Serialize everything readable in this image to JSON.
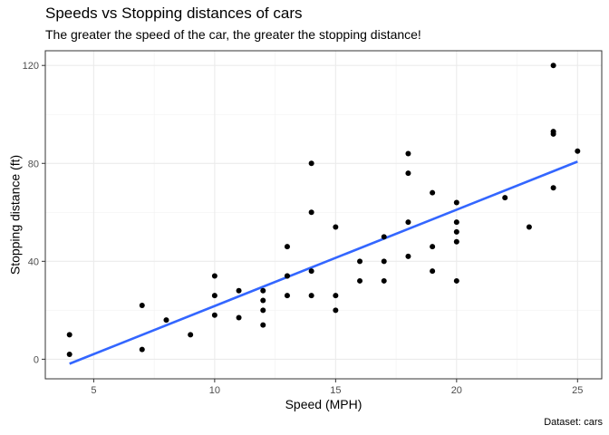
{
  "chart_data": {
    "type": "scatter",
    "title": "Speeds vs Stopping distances of cars",
    "subtitle": "The greater the speed of the car, the greater the stopping distance!",
    "caption": "Dataset: cars",
    "xlabel": "Speed (MPH)",
    "ylabel": "Stopping distance (ft)",
    "xlim": [
      3.0,
      26.0
    ],
    "ylim": [
      -8.0,
      126.0
    ],
    "xticks": [
      5,
      10,
      15,
      20,
      25
    ],
    "yticks": [
      0,
      40,
      80,
      120
    ],
    "xminor": [
      7.5,
      12.5,
      17.5,
      22.5
    ],
    "yminor": [
      20,
      60,
      100
    ],
    "grid": true,
    "point_color": "#000000",
    "line_color": "#3366FF",
    "points": [
      [
        4,
        2
      ],
      [
        4,
        10
      ],
      [
        7,
        4
      ],
      [
        7,
        22
      ],
      [
        8,
        16
      ],
      [
        9,
        10
      ],
      [
        10,
        18
      ],
      [
        10,
        26
      ],
      [
        10,
        34
      ],
      [
        11,
        17
      ],
      [
        11,
        28
      ],
      [
        12,
        14
      ],
      [
        12,
        20
      ],
      [
        12,
        24
      ],
      [
        12,
        28
      ],
      [
        13,
        26
      ],
      [
        13,
        34
      ],
      [
        13,
        34
      ],
      [
        13,
        46
      ],
      [
        14,
        26
      ],
      [
        14,
        36
      ],
      [
        14,
        60
      ],
      [
        14,
        80
      ],
      [
        15,
        20
      ],
      [
        15,
        26
      ],
      [
        15,
        54
      ],
      [
        16,
        32
      ],
      [
        16,
        40
      ],
      [
        17,
        32
      ],
      [
        17,
        40
      ],
      [
        17,
        50
      ],
      [
        18,
        42
      ],
      [
        18,
        56
      ],
      [
        18,
        76
      ],
      [
        18,
        84
      ],
      [
        19,
        36
      ],
      [
        19,
        46
      ],
      [
        19,
        68
      ],
      [
        20,
        32
      ],
      [
        20,
        48
      ],
      [
        20,
        52
      ],
      [
        20,
        56
      ],
      [
        20,
        64
      ],
      [
        22,
        66
      ],
      [
        23,
        54
      ],
      [
        24,
        70
      ],
      [
        24,
        92
      ],
      [
        24,
        93
      ],
      [
        24,
        120
      ],
      [
        25,
        85
      ]
    ],
    "fit": {
      "method": "lm",
      "x": [
        4,
        25
      ],
      "y": [
        -1.85,
        80.73
      ]
    }
  }
}
